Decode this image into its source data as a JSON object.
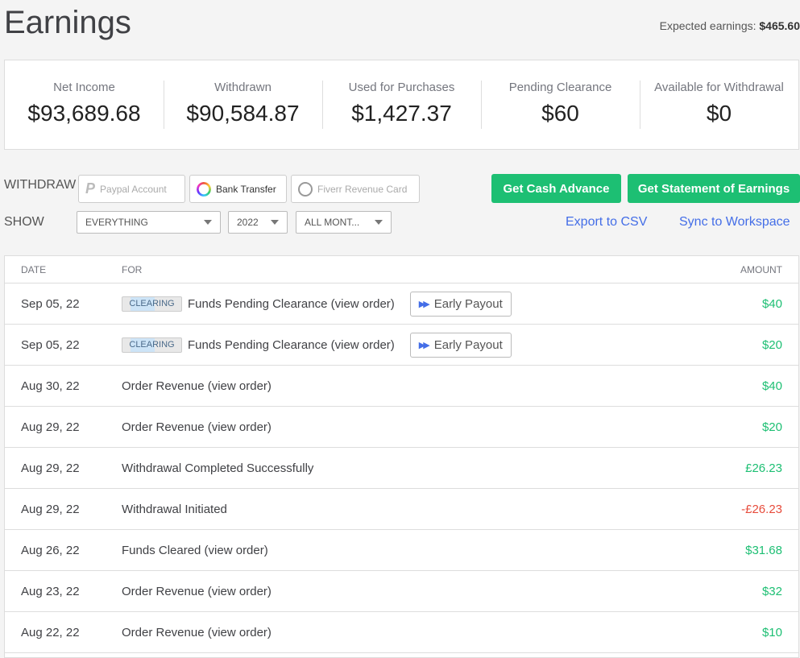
{
  "header": {
    "title": "Earnings",
    "expected_label": "Expected earnings:",
    "expected_value": "$465.60"
  },
  "stats": [
    {
      "label": "Net Income",
      "value": "$93,689.68"
    },
    {
      "label": "Withdrawn",
      "value": "$90,584.87"
    },
    {
      "label": "Used for Purchases",
      "value": "$1,427.37"
    },
    {
      "label": "Pending Clearance",
      "value": "$60"
    },
    {
      "label": "Available for Withdrawal",
      "value": "$0"
    }
  ],
  "withdraw": {
    "label": "WITHDRAW",
    "options": [
      "Paypal Account",
      "Bank Transfer",
      "Fiverr Revenue Card"
    ]
  },
  "show": {
    "label": "SHOW",
    "type": "EVERYTHING",
    "year": "2022",
    "month": "ALL MONT..."
  },
  "actions": {
    "cash_advance": "Get Cash Advance",
    "statement": "Get Statement of Earnings",
    "export": "Export to CSV",
    "sync": "Sync to Workspace"
  },
  "table": {
    "headers": {
      "date": "DATE",
      "for": "FOR",
      "amount": "AMOUNT"
    },
    "badge": "CLEARING",
    "early_payout": "Early Payout",
    "rows": [
      {
        "date": "Sep 05, 22",
        "for": "Funds Pending Clearance (view order)",
        "amount": "$40"
      },
      {
        "date": "Sep 05, 22",
        "for": "Funds Pending Clearance (view order)",
        "amount": "$20"
      },
      {
        "date": "Aug 30, 22",
        "for": "Order Revenue (view order)",
        "amount": "$40"
      },
      {
        "date": "Aug 29, 22",
        "for": "Order Revenue (view order)",
        "amount": "$20"
      },
      {
        "date": "Aug 29, 22",
        "for": "Withdrawal Completed Successfully",
        "amount": "£26.23"
      },
      {
        "date": "Aug 29, 22",
        "for": "Withdrawal Initiated",
        "amount": "-£26.23"
      },
      {
        "date": "Aug 26, 22",
        "for": "Funds Cleared (view order)",
        "amount": "$31.68"
      },
      {
        "date": "Aug 23, 22",
        "for": "Order Revenue (view order)",
        "amount": "$32"
      },
      {
        "date": "Aug 22, 22",
        "for": "Order Revenue (view order)",
        "amount": "$10"
      }
    ]
  }
}
